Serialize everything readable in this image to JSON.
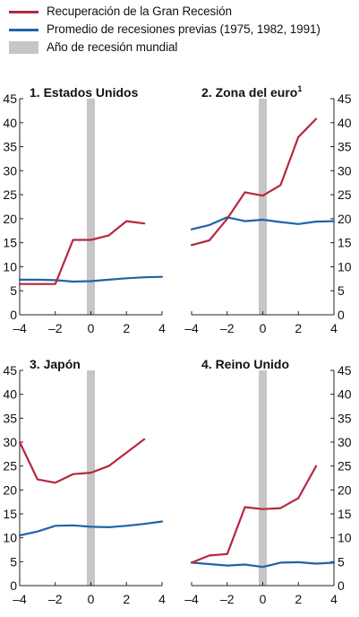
{
  "legend": {
    "items": [
      {
        "label": "Recuperación de la Gran Recesión",
        "color": "#b5283f",
        "kind": "line"
      },
      {
        "label": "Promedio de recesiones previas (1975, 1982, 1991)",
        "color": "#1f64a8",
        "kind": "line"
      },
      {
        "label": "Año de recesión mundial",
        "color": "#c6c6c6",
        "kind": "box"
      }
    ]
  },
  "chart_data": [
    {
      "type": "line",
      "title": "1. Estados Unidos",
      "title_sup": "",
      "xlim": [
        -4,
        4
      ],
      "ylim": [
        0,
        45
      ],
      "xticks": [
        -4,
        -2,
        0,
        2,
        4
      ],
      "xtick_labels": [
        "–4",
        "–2",
        "0",
        "2",
        "4"
      ],
      "yticks": [
        0,
        5,
        10,
        15,
        20,
        25,
        30,
        35,
        40,
        45
      ],
      "y_axis_side": "left",
      "recession_year": 0,
      "series": [
        {
          "name": "Recuperación de la Gran Recesión",
          "color": "#b5283f",
          "x": [
            -4,
            -3,
            -2,
            -1,
            0,
            1,
            2,
            3
          ],
          "y": [
            6.4,
            6.4,
            6.4,
            15.6,
            15.6,
            16.5,
            19.5,
            19.0
          ]
        },
        {
          "name": "Promedio de recesiones previas (1975, 1982, 1991)",
          "color": "#1f64a8",
          "x": [
            -4,
            -3,
            -2,
            -1,
            0,
            1,
            2,
            3,
            4
          ],
          "y": [
            7.3,
            7.3,
            7.2,
            6.9,
            7.0,
            7.3,
            7.6,
            7.8,
            7.9
          ]
        }
      ]
    },
    {
      "type": "line",
      "title": "2. Zona del euro",
      "title_sup": "1",
      "xlim": [
        -4,
        4
      ],
      "ylim": [
        0,
        45
      ],
      "xticks": [
        -4,
        -2,
        0,
        2,
        4
      ],
      "xtick_labels": [
        "–4",
        "–2",
        "0",
        "2",
        "4"
      ],
      "yticks": [
        0,
        5,
        10,
        15,
        20,
        25,
        30,
        35,
        40,
        45
      ],
      "y_axis_side": "right",
      "recession_year": 0,
      "series": [
        {
          "name": "Recuperación de la Gran Recesión",
          "color": "#b5283f",
          "x": [
            -4,
            -3,
            -2,
            -1,
            0,
            1,
            2,
            3
          ],
          "y": [
            14.5,
            15.5,
            20.0,
            25.5,
            24.8,
            27.0,
            37.0,
            40.8
          ]
        },
        {
          "name": "Promedio de recesiones previas (1975, 1982, 1991)",
          "color": "#1f64a8",
          "x": [
            -4,
            -3,
            -2,
            -1,
            0,
            1,
            2,
            3,
            4
          ],
          "y": [
            17.8,
            18.7,
            20.3,
            19.5,
            19.8,
            19.3,
            18.9,
            19.4,
            19.5
          ]
        }
      ]
    },
    {
      "type": "line",
      "title": "3. Japón",
      "title_sup": "",
      "xlim": [
        -4,
        4
      ],
      "ylim": [
        0,
        45
      ],
      "xticks": [
        -4,
        -2,
        0,
        2,
        4
      ],
      "xtick_labels": [
        "–4",
        "–2",
        "0",
        "2",
        "4"
      ],
      "yticks": [
        0,
        5,
        10,
        15,
        20,
        25,
        30,
        35,
        40,
        45
      ],
      "y_axis_side": "left",
      "recession_year": 0,
      "series": [
        {
          "name": "Recuperación de la Gran Recesión",
          "color": "#b5283f",
          "x": [
            -4,
            -3,
            -2,
            -1,
            0,
            1,
            2,
            3
          ],
          "y": [
            30.0,
            22.2,
            21.5,
            23.3,
            23.6,
            25.0,
            27.8,
            30.6
          ]
        },
        {
          "name": "Promedio de recesiones previas (1975, 1982, 1991)",
          "color": "#1f64a8",
          "x": [
            -4,
            -3,
            -2,
            -1,
            0,
            1,
            2,
            3,
            4
          ],
          "y": [
            10.5,
            11.3,
            12.5,
            12.6,
            12.3,
            12.2,
            12.5,
            12.9,
            13.4
          ]
        }
      ]
    },
    {
      "type": "line",
      "title": "4. Reino Unido",
      "title_sup": "",
      "xlim": [
        -4,
        4
      ],
      "ylim": [
        0,
        45
      ],
      "xticks": [
        -4,
        -2,
        0,
        2,
        4
      ],
      "xtick_labels": [
        "–4",
        "–2",
        "0",
        "2",
        "4"
      ],
      "yticks": [
        0,
        5,
        10,
        15,
        20,
        25,
        30,
        35,
        40,
        45
      ],
      "y_axis_side": "right",
      "recession_year": 0,
      "series": [
        {
          "name": "Recuperación de la Gran Recesión",
          "color": "#b5283f",
          "x": [
            -4,
            -3,
            -2,
            -1,
            0,
            1,
            2,
            3
          ],
          "y": [
            4.8,
            6.3,
            6.6,
            16.4,
            16.0,
            16.2,
            18.3,
            25.0
          ]
        },
        {
          "name": "Promedio de recesiones previas (1975, 1982, 1991)",
          "color": "#1f64a8",
          "x": [
            -4,
            -3,
            -2,
            -1,
            0,
            1,
            2,
            3,
            4
          ],
          "y": [
            4.8,
            4.5,
            4.2,
            4.4,
            3.9,
            4.8,
            4.9,
            4.6,
            4.8
          ]
        }
      ]
    }
  ]
}
